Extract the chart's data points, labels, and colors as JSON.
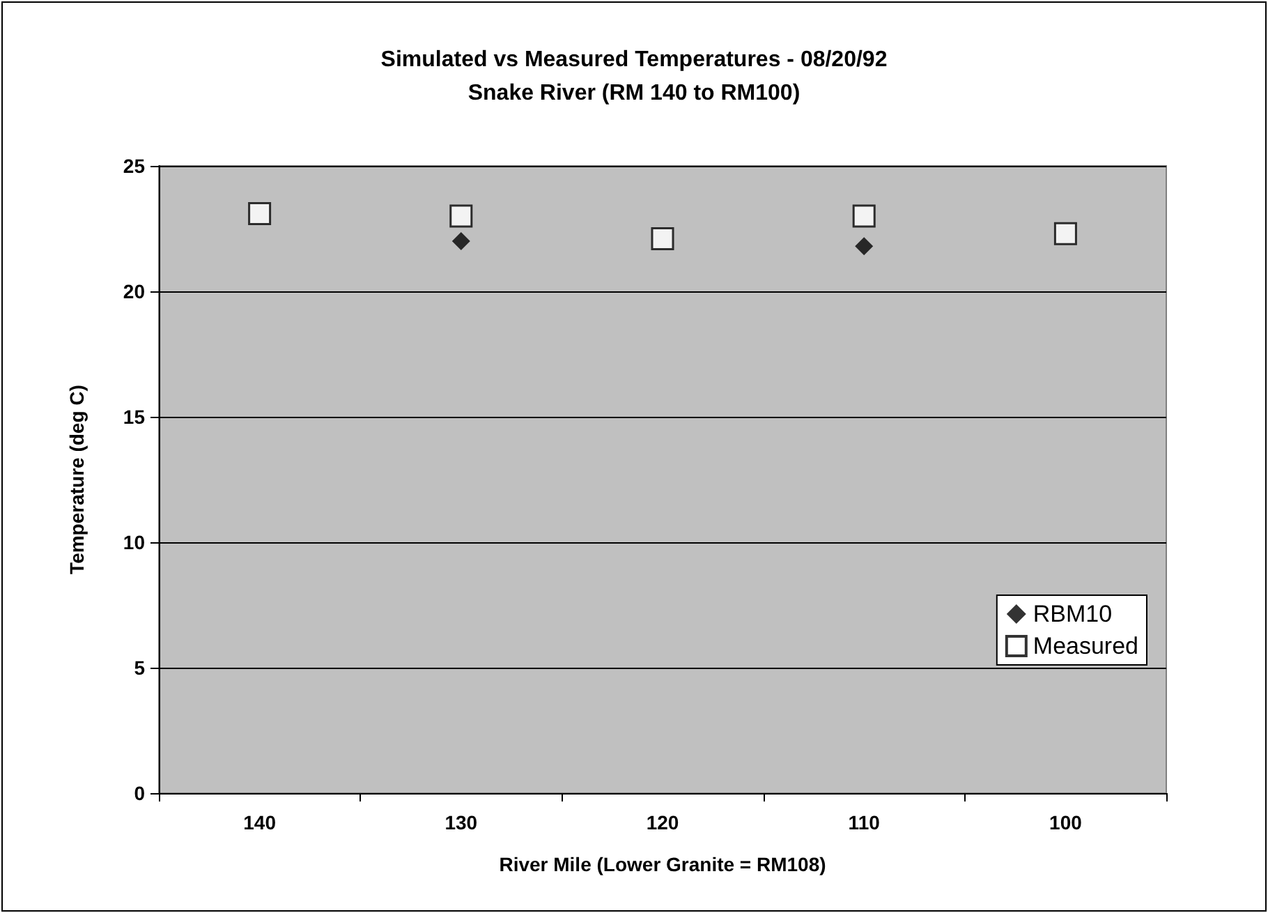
{
  "chart_data": {
    "type": "scatter",
    "title": "Simulated vs Measured Temperatures - 08/20/92",
    "subtitle": "Snake River (RM 140 to RM100)",
    "xlabel": "River Mile (Lower Granite = RM108)",
    "ylabel": "Temperature (deg C)",
    "categories": [
      "140",
      "130",
      "120",
      "110",
      "100"
    ],
    "series": [
      {
        "name": "RBM10",
        "color": "#000000",
        "marker": "diamond",
        "values": [
          null,
          22.0,
          null,
          21.8,
          null
        ]
      },
      {
        "name": "Measured",
        "color": "#ffffff",
        "marker": "square",
        "values": [
          23.1,
          23.0,
          22.1,
          23.0,
          22.3
        ]
      }
    ],
    "ylim": [
      0,
      25
    ],
    "yticks": [
      0,
      5,
      10,
      15,
      20,
      25
    ],
    "grid": "y",
    "legend": "right"
  }
}
